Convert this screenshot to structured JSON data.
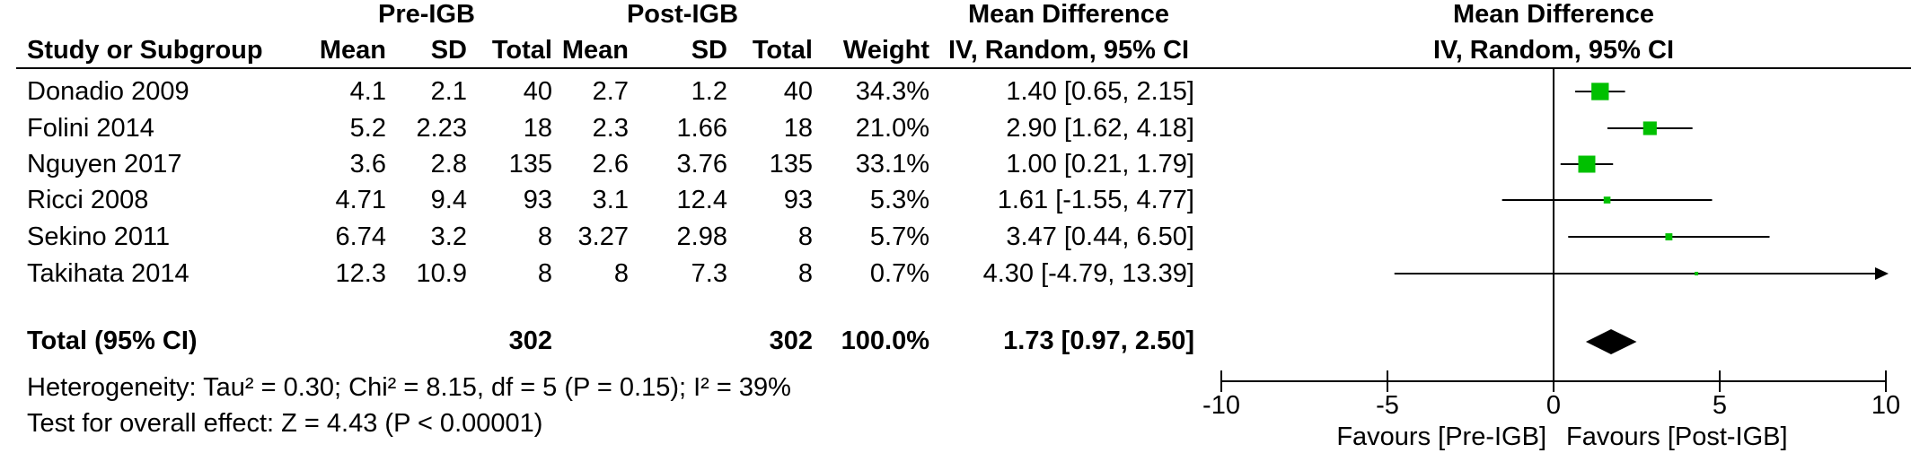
{
  "headers": {
    "group1": "Pre-IGB",
    "group2": "Post-IGB",
    "md_title": "Mean Difference",
    "md_method": "IV, Random, 95% CI",
    "plot_title": "Mean Difference",
    "plot_method": "IV, Random, 95% CI",
    "study": "Study or Subgroup",
    "mean1": "Mean",
    "sd1": "SD",
    "total1": "Total",
    "mean2": "Mean",
    "sd2": "SD",
    "total2": "Total",
    "weight": "Weight"
  },
  "studies": [
    {
      "name": "Donadio 2009",
      "mean1": "4.1",
      "sd1": "2.1",
      "n1": "40",
      "mean2": "2.7",
      "sd2": "1.2",
      "n2": "40",
      "weight": "34.3%",
      "ci": "1.40 [0.65, 2.15]"
    },
    {
      "name": "Folini 2014",
      "mean1": "5.2",
      "sd1": "2.23",
      "n1": "18",
      "mean2": "2.3",
      "sd2": "1.66",
      "n2": "18",
      "weight": "21.0%",
      "ci": "2.90 [1.62, 4.18]"
    },
    {
      "name": "Nguyen 2017",
      "mean1": "3.6",
      "sd1": "2.8",
      "n1": "135",
      "mean2": "2.6",
      "sd2": "3.76",
      "n2": "135",
      "weight": "33.1%",
      "ci": "1.00 [0.21, 1.79]"
    },
    {
      "name": "Ricci 2008",
      "mean1": "4.71",
      "sd1": "9.4",
      "n1": "93",
      "mean2": "3.1",
      "sd2": "12.4",
      "n2": "93",
      "weight": "5.3%",
      "ci": "1.61 [-1.55, 4.77]"
    },
    {
      "name": "Sekino 2011",
      "mean1": "6.74",
      "sd1": "3.2",
      "n1": "8",
      "mean2": "3.27",
      "sd2": "2.98",
      "n2": "8",
      "weight": "5.7%",
      "ci": "3.47 [0.44, 6.50]"
    },
    {
      "name": "Takihata 2014",
      "mean1": "12.3",
      "sd1": "10.9",
      "n1": "8",
      "mean2": "8",
      "sd2": "7.3",
      "n2": "8",
      "weight": "0.7%",
      "ci": "4.30 [-4.79, 13.39]"
    }
  ],
  "total": {
    "label": "Total (95% CI)",
    "n1": "302",
    "n2": "302",
    "weight": "100.0%",
    "ci": "1.73 [0.97, 2.50]"
  },
  "heterogeneity": "Heterogeneity: Tau² = 0.30; Chi² = 8.15, df = 5 (P = 0.15); I² = 39%",
  "overall_effect": "Test for overall effect: Z = 4.43 (P < 0.00001)",
  "favours_left": "Favours [Pre-IGB]",
  "favours_right": "Favours [Post-IGB]",
  "colors": {
    "marker": "#00c000",
    "line": "#000000",
    "diamond": "#000000"
  },
  "chart_data": {
    "type": "scatter",
    "title": "Mean Difference",
    "subtitle": "IV, Random, 95% CI",
    "xlim": [
      -10,
      10
    ],
    "xticks": [
      -10,
      -5,
      0,
      5,
      10
    ],
    "xticklabels": [
      "-10",
      "-5",
      "0",
      "5",
      "10"
    ],
    "series": [
      {
        "name": "Donadio 2009",
        "estimate": 1.4,
        "lower": 0.65,
        "upper": 2.15,
        "weight": 34.3
      },
      {
        "name": "Folini 2014",
        "estimate": 2.9,
        "lower": 1.62,
        "upper": 4.18,
        "weight": 21.0
      },
      {
        "name": "Nguyen 2017",
        "estimate": 1.0,
        "lower": 0.21,
        "upper": 1.79,
        "weight": 33.1
      },
      {
        "name": "Ricci 2008",
        "estimate": 1.61,
        "lower": -1.55,
        "upper": 4.77,
        "weight": 5.3
      },
      {
        "name": "Sekino 2011",
        "estimate": 3.47,
        "lower": 0.44,
        "upper": 6.5,
        "weight": 5.7
      },
      {
        "name": "Takihata 2014",
        "estimate": 4.3,
        "lower": -4.79,
        "upper": 13.39,
        "weight": 0.7
      }
    ],
    "pooled": {
      "estimate": 1.73,
      "lower": 0.97,
      "upper": 2.5
    }
  }
}
